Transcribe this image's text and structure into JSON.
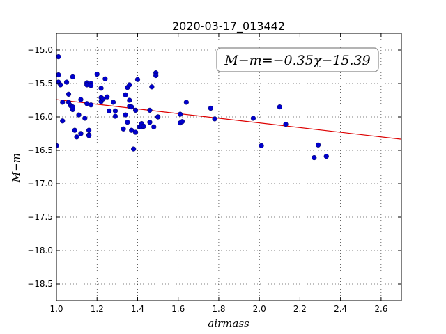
{
  "chart_data": {
    "type": "scatter",
    "title": "2020-03-17_013442",
    "xlabel": "airmass",
    "ylabel": "M−m",
    "xlim": [
      1.0,
      2.7
    ],
    "ylim": [
      -18.75,
      -14.75
    ],
    "y_inverted": true,
    "grid": true,
    "x_ticks": [
      1.0,
      1.2,
      1.4,
      1.6,
      1.8,
      2.0,
      2.2,
      2.4,
      2.6
    ],
    "x_tick_labels": [
      "1.0",
      "1.2",
      "1.4",
      "1.6",
      "1.8",
      "2.0",
      "2.2",
      "2.4",
      "2.6"
    ],
    "y_ticks": [
      -15.0,
      -15.5,
      -16.0,
      -16.5,
      -17.0,
      -17.5,
      -18.0,
      -18.5
    ],
    "y_tick_labels": [
      "−15.0",
      "−15.5",
      "−16.0",
      "−16.5",
      "−17.0",
      "−17.5",
      "−18.0",
      "−18.5"
    ],
    "annotation": "M−m=−0.35χ−15.39",
    "fit": {
      "slope": -0.35,
      "intercept": -15.39,
      "color": "#dd0000"
    },
    "point_color": "#0000cc",
    "x": [
      1.0,
      1.01,
      1.01,
      1.01,
      1.02,
      1.03,
      1.03,
      1.05,
      1.06,
      1.06,
      1.07,
      1.08,
      1.08,
      1.08,
      1.09,
      1.1,
      1.11,
      1.12,
      1.12,
      1.12,
      1.14,
      1.15,
      1.15,
      1.15,
      1.16,
      1.16,
      1.16,
      1.17,
      1.17,
      1.17,
      1.2,
      1.22,
      1.22,
      1.22,
      1.23,
      1.24,
      1.25,
      1.26,
      1.28,
      1.29,
      1.29,
      1.33,
      1.34,
      1.34,
      1.35,
      1.35,
      1.36,
      1.36,
      1.36,
      1.37,
      1.37,
      1.38,
      1.39,
      1.39,
      1.4,
      1.41,
      1.42,
      1.42,
      1.43,
      1.46,
      1.46,
      1.47,
      1.48,
      1.49,
      1.49,
      1.5,
      1.5,
      1.61,
      1.61,
      1.62,
      1.64,
      1.76,
      1.78,
      1.97,
      2.01,
      2.1,
      2.13,
      2.27,
      2.29,
      2.33
    ],
    "y": [
      -16.43,
      -15.1,
      -15.37,
      -15.48,
      -15.52,
      -15.78,
      -16.06,
      -15.48,
      -15.66,
      -15.78,
      -15.83,
      -15.89,
      -15.85,
      -15.4,
      -16.2,
      -16.3,
      -15.97,
      -15.74,
      -16.25,
      -16.25,
      -16.02,
      -15.49,
      -15.52,
      -15.8,
      -16.2,
      -16.27,
      -16.28,
      -15.5,
      -15.53,
      -15.82,
      -15.36,
      -15.57,
      -15.71,
      -15.77,
      -15.73,
      -15.43,
      -15.7,
      -15.91,
      -15.78,
      -15.91,
      -15.99,
      -16.18,
      -15.67,
      -15.97,
      -16.08,
      -15.56,
      -15.52,
      -15.75,
      -15.84,
      -15.85,
      -16.2,
      -16.48,
      -15.9,
      -16.23,
      -15.44,
      -16.15,
      -16.1,
      -16.15,
      -16.14,
      -16.08,
      -15.9,
      -15.55,
      -16.15,
      -15.34,
      -15.38,
      -16.0,
      -16.0,
      -15.96,
      -16.09,
      -16.07,
      -15.78,
      -15.87,
      -16.03,
      -16.02,
      -16.43,
      -15.85,
      -16.11,
      -16.61,
      -16.42,
      -16.59
    ]
  }
}
